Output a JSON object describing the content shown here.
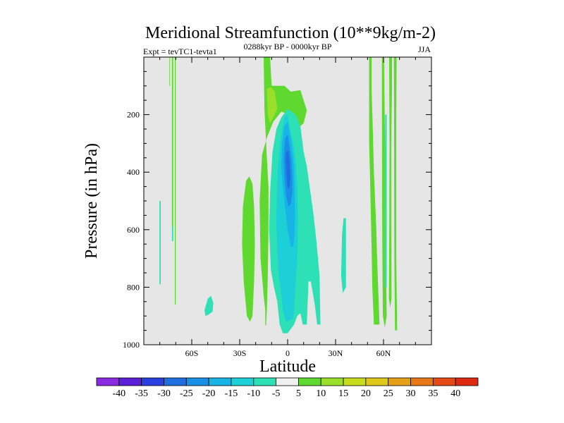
{
  "chart_data": {
    "type": "heatmap",
    "title": "Meridional Streamfunction (10**9kg/m-2)",
    "left_label": "Expt = tevTC1-tevta1",
    "center_label": "0288kyr BP - 0000kyr BP",
    "right_label": "JJA",
    "xlabel": "Latitude",
    "ylabel": "Pressure (in hPa)",
    "xlim": [
      -90,
      90
    ],
    "ylim": [
      1000,
      0
    ],
    "x_ticks": [
      {
        "value": -60,
        "label": "60S"
      },
      {
        "value": -30,
        "label": "30S"
      },
      {
        "value": 0,
        "label": "0"
      },
      {
        "value": 30,
        "label": "30N"
      },
      {
        "value": 60,
        "label": "60N"
      }
    ],
    "y_ticks": [
      {
        "value": 200,
        "label": "200"
      },
      {
        "value": 400,
        "label": "400"
      },
      {
        "value": 600,
        "label": "600"
      },
      {
        "value": 800,
        "label": "800"
      },
      {
        "value": 1000,
        "label": "1000"
      }
    ],
    "background_color": "#e6e6e6",
    "colorbar": {
      "levels": [
        "-40",
        "-35",
        "-30",
        "-25",
        "-20",
        "-15",
        "-10",
        "-5",
        "5",
        "10",
        "15",
        "20",
        "25",
        "30",
        "35",
        "40"
      ],
      "colors": [
        "#8a2be2",
        "#5a1fd6",
        "#2a3fe0",
        "#1f6ee0",
        "#1a8fe6",
        "#18b4e6",
        "#1dcfd6",
        "#2ee0b5",
        "#f0f0f0",
        "#5fd830",
        "#9ae02a",
        "#c8dc1e",
        "#e0c81a",
        "#e6a018",
        "#e67818",
        "#e64a14",
        "#dd2a10"
      ]
    },
    "contours": [
      {
        "name": "positive-lobe-sh-a",
        "color": "#5fd830",
        "points": [
          [
            -74,
            0
          ],
          [
            -73.6,
            0
          ],
          [
            -73.6,
            100
          ],
          [
            -74,
            100
          ]
        ]
      },
      {
        "name": "positive-lobe-sh-b",
        "color": "#5fd830",
        "points": [
          [
            -72.4,
            0
          ],
          [
            -71.6,
            0
          ],
          [
            -71.6,
            590
          ],
          [
            -72.4,
            590
          ]
        ]
      },
      {
        "name": "negative-lobe-sh-c",
        "color": "#2ee0b5",
        "points": [
          [
            -72.4,
            590
          ],
          [
            -71.6,
            590
          ],
          [
            -71.6,
            640
          ],
          [
            -72.4,
            640
          ]
        ]
      },
      {
        "name": "positive-lobe-sh-d",
        "color": "#5fd830",
        "points": [
          [
            -70.6,
            0
          ],
          [
            -70.0,
            0
          ],
          [
            -70.0,
            860
          ],
          [
            -70.6,
            860
          ]
        ]
      },
      {
        "name": "negative-lobe-sh-e",
        "color": "#2ee0b5",
        "points": [
          [
            -80.2,
            500
          ],
          [
            -79.4,
            500
          ],
          [
            -79.4,
            790
          ],
          [
            -80.2,
            790
          ]
        ]
      },
      {
        "name": "negative-lobe-sh-f",
        "color": "#2ee0b5",
        "points": [
          [
            -52,
            880
          ],
          [
            -50,
            840
          ],
          [
            -48,
            830
          ],
          [
            -46.5,
            855
          ],
          [
            -47,
            885
          ],
          [
            -49.5,
            895
          ],
          [
            -51.5,
            900
          ]
        ]
      },
      {
        "name": "positive-lobe-subtrop-sh",
        "color": "#5fd830",
        "points": [
          [
            -28,
            520
          ],
          [
            -26,
            430
          ],
          [
            -24,
            415
          ],
          [
            -22,
            440
          ],
          [
            -21,
            520
          ],
          [
            -20.5,
            650
          ],
          [
            -21,
            780
          ],
          [
            -22,
            900
          ],
          [
            -23.5,
            920
          ],
          [
            -25.5,
            900
          ],
          [
            -27.5,
            780
          ],
          [
            -28.5,
            650
          ]
        ]
      },
      {
        "name": "positive-lobe-upper",
        "color": "#5fd830",
        "points": [
          [
            -15,
            0
          ],
          [
            -11,
            0
          ],
          [
            -10,
            100
          ],
          [
            -8,
            100
          ],
          [
            -2,
            100
          ],
          [
            2,
            120
          ],
          [
            8,
            115
          ],
          [
            12,
            185
          ],
          [
            10,
            230
          ],
          [
            6,
            250
          ],
          [
            4,
            230
          ],
          [
            2,
            200
          ],
          [
            -4,
            190
          ],
          [
            -9,
            225
          ],
          [
            -13,
            280
          ],
          [
            -16,
            340
          ],
          [
            -17.5,
            500
          ],
          [
            -17,
            700
          ],
          [
            -15,
            830
          ],
          [
            -14,
            880
          ],
          [
            -14,
            930
          ],
          [
            -13.5,
            935
          ],
          [
            -13,
            880
          ],
          [
            -12.5,
            780
          ],
          [
            -12,
            600
          ],
          [
            -12,
            450
          ],
          [
            -13,
            350
          ],
          [
            -14.5,
            180
          ]
        ]
      },
      {
        "name": "positive-lobe-upper-inner",
        "color": "#9ae02a",
        "points": [
          [
            -13,
            110
          ],
          [
            -10.5,
            105
          ],
          [
            -8,
            120
          ],
          [
            -6.5,
            180
          ],
          [
            -8.5,
            205
          ],
          [
            -11,
            230
          ],
          [
            -12.5,
            200
          ]
        ]
      },
      {
        "name": "negative-cell-tropics",
        "color": "#2ee0b5",
        "points": [
          [
            -4,
            210
          ],
          [
            0,
            180
          ],
          [
            5,
            200
          ],
          [
            8,
            240
          ],
          [
            10,
            330
          ],
          [
            12,
            380
          ],
          [
            13.5,
            440
          ],
          [
            16,
            540
          ],
          [
            18,
            640
          ],
          [
            20,
            760
          ],
          [
            20.5,
            930
          ],
          [
            18.5,
            930
          ],
          [
            17,
            860
          ],
          [
            14.5,
            780
          ],
          [
            13,
            780
          ],
          [
            12.5,
            860
          ],
          [
            12,
            930
          ],
          [
            9.5,
            930
          ],
          [
            8,
            890
          ],
          [
            6,
            900
          ],
          [
            4,
            930
          ],
          [
            0,
            960
          ],
          [
            -3,
            960
          ],
          [
            -5,
            930
          ],
          [
            -6.5,
            850
          ],
          [
            -8.5,
            800
          ],
          [
            -10.5,
            740
          ],
          [
            -11.5,
            600
          ],
          [
            -11,
            470
          ],
          [
            -9.5,
            330
          ],
          [
            -7,
            250
          ]
        ]
      },
      {
        "name": "negative-cell-core",
        "color": "#1dcfd6",
        "points": [
          [
            -2,
            205
          ],
          [
            0,
            200
          ],
          [
            1.5,
            250
          ],
          [
            3.5,
            300
          ],
          [
            5,
            360
          ],
          [
            6,
            450
          ],
          [
            6.5,
            550
          ],
          [
            6.3,
            650
          ],
          [
            5.8,
            720
          ],
          [
            4.8,
            800
          ],
          [
            4,
            880
          ],
          [
            3.5,
            910
          ],
          [
            -1,
            920
          ],
          [
            -3,
            880
          ],
          [
            -4,
            820
          ],
          [
            -5.5,
            760
          ],
          [
            -6.5,
            680
          ],
          [
            -7,
            580
          ],
          [
            -6.8,
            480
          ],
          [
            -6,
            380
          ],
          [
            -4.5,
            290
          ]
        ]
      },
      {
        "name": "negative-cell-inner",
        "color": "#18b4e6",
        "points": [
          [
            -2,
            240
          ],
          [
            0,
            225
          ],
          [
            1.5,
            270
          ],
          [
            3,
            320
          ],
          [
            4,
            380
          ],
          [
            4.5,
            480
          ],
          [
            4.6,
            560
          ],
          [
            4.3,
            620
          ],
          [
            3.5,
            660
          ],
          [
            2,
            660
          ],
          [
            0,
            600
          ],
          [
            -1.5,
            530
          ],
          [
            -3,
            450
          ],
          [
            -4,
            380
          ],
          [
            -3.5,
            300
          ]
        ]
      },
      {
        "name": "negative-cell-deep",
        "color": "#1a8fe6",
        "points": [
          [
            -1.5,
            280
          ],
          [
            0,
            270
          ],
          [
            1.5,
            320
          ],
          [
            2.5,
            360
          ],
          [
            3,
            420
          ],
          [
            3,
            470
          ],
          [
            2,
            510
          ],
          [
            0.5,
            520
          ],
          [
            -1,
            480
          ],
          [
            -2,
            420
          ],
          [
            -2.5,
            350
          ]
        ]
      },
      {
        "name": "negative-cell-deepest",
        "color": "#1f6ee0",
        "points": [
          [
            -1,
            330
          ],
          [
            0.5,
            325
          ],
          [
            1.3,
            360
          ],
          [
            1.8,
            420
          ],
          [
            1,
            460
          ],
          [
            -0.2,
            450
          ],
          [
            -0.8,
            400
          ],
          [
            -1.2,
            360
          ]
        ]
      },
      {
        "name": "negative-lobe-nh-30",
        "color": "#2ee0b5",
        "points": [
          [
            35,
            560
          ],
          [
            36.5,
            560
          ],
          [
            36.5,
            800
          ],
          [
            34.5,
            820
          ],
          [
            33.5,
            760
          ],
          [
            34,
            620
          ]
        ]
      },
      {
        "name": "positive-lobe-nh-a",
        "color": "#5fd830",
        "points": [
          [
            51,
            0
          ],
          [
            52.5,
            0
          ],
          [
            52.5,
            100
          ],
          [
            53.5,
            300
          ],
          [
            54,
            400
          ],
          [
            55.5,
            600
          ],
          [
            56,
            700
          ],
          [
            57.5,
            930
          ],
          [
            54,
            930
          ],
          [
            53,
            800
          ],
          [
            52.5,
            650
          ],
          [
            51.5,
            400
          ],
          [
            51,
            300
          ]
        ]
      },
      {
        "name": "positive-lobe-nh-b",
        "color": "#5fd830",
        "points": [
          [
            59,
            0
          ],
          [
            60.3,
            0
          ],
          [
            60.5,
            100
          ],
          [
            61,
            300
          ],
          [
            61.5,
            500
          ],
          [
            61.5,
            700
          ],
          [
            62,
            900
          ],
          [
            60.8,
            940
          ],
          [
            59.6,
            900
          ],
          [
            59.3,
            700
          ],
          [
            59.1,
            500
          ]
        ]
      },
      {
        "name": "positive-lobe-nh-c",
        "color": "#5fd830",
        "points": [
          [
            63.5,
            0
          ],
          [
            65.3,
            0
          ],
          [
            65.3,
            100
          ],
          [
            64.8,
            300
          ],
          [
            64.8,
            600
          ],
          [
            65,
            840
          ],
          [
            64.2,
            870
          ],
          [
            63.4,
            840
          ],
          [
            63.6,
            600
          ],
          [
            63.8,
            300
          ]
        ]
      },
      {
        "name": "positive-lobe-nh-d",
        "color": "#5fd830",
        "points": [
          [
            66.5,
            0
          ],
          [
            68.2,
            0
          ],
          [
            68,
            200
          ],
          [
            68,
            700
          ],
          [
            68.5,
            950
          ],
          [
            67.2,
            950
          ],
          [
            66.8,
            700
          ],
          [
            66.6,
            200
          ]
        ]
      },
      {
        "name": "negative-lobe-nh-e",
        "color": "#2ee0b5",
        "points": [
          [
            61,
            200
          ],
          [
            62,
            200
          ],
          [
            62,
            800
          ],
          [
            61,
            800
          ]
        ]
      },
      {
        "name": "positive-lobe-nh-f",
        "color": "#c8dc1e",
        "points": [
          [
            59.4,
            0
          ],
          [
            59.9,
            0
          ],
          [
            60,
            20
          ],
          [
            59.5,
            20
          ]
        ]
      }
    ]
  }
}
